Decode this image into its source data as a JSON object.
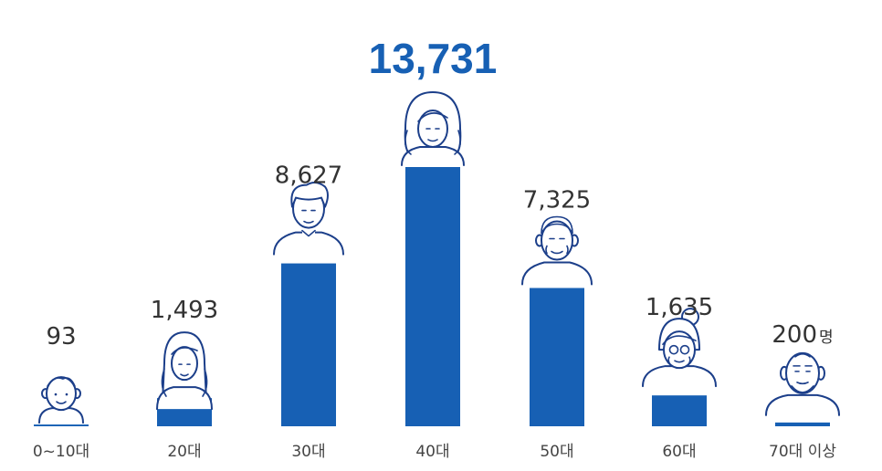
{
  "chart_data": {
    "type": "bar",
    "categories": [
      "0~10대",
      "20대",
      "30대",
      "40대",
      "50대",
      "60대",
      "70대 이상"
    ],
    "values": [
      93,
      1493,
      8627,
      13731,
      7325,
      1635,
      200
    ],
    "value_labels": [
      "93",
      "1,493",
      "8,627",
      "13,731",
      "7,325",
      "1,635",
      "200"
    ],
    "unit": "명",
    "icons": [
      "child-face-icon",
      "young-woman-face-icon",
      "young-man-face-icon",
      "woman-face-icon",
      "middle-aged-man-face-icon",
      "elderly-woman-face-icon",
      "elderly-man-face-icon"
    ],
    "bar_color": "#1760b4",
    "highlight_color": "#1760b4",
    "icon_color": "#1c3f8a",
    "ylim": [
      0,
      13731
    ]
  }
}
